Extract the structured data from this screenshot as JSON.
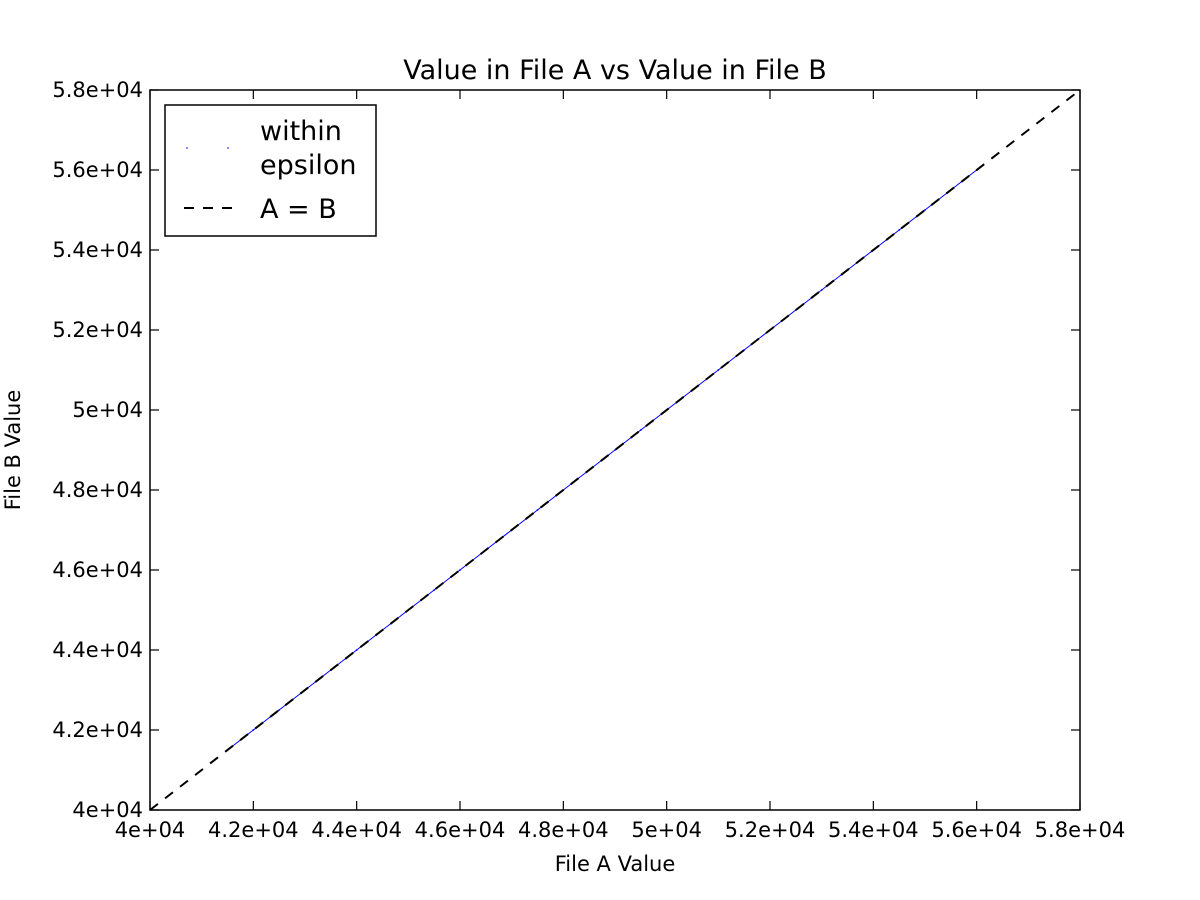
{
  "chart_data": {
    "type": "scatter",
    "title": "Value in File A vs Value in File B",
    "xlabel": "File A Value",
    "ylabel": "File B Value",
    "xlim": [
      40000,
      58000
    ],
    "ylim": [
      40000,
      58000
    ],
    "x_ticks": [
      40000,
      42000,
      44000,
      46000,
      48000,
      50000,
      52000,
      54000,
      56000,
      58000
    ],
    "x_tick_labels": [
      "4e+04",
      "4.2e+04",
      "4.4e+04",
      "4.6e+04",
      "4.8e+04",
      "5e+04",
      "5.2e+04",
      "5.4e+04",
      "5.6e+04",
      "5.8e+04"
    ],
    "y_ticks": [
      40000,
      42000,
      44000,
      46000,
      48000,
      50000,
      52000,
      54000,
      56000,
      58000
    ],
    "y_tick_labels": [
      "4e+04",
      "4.2e+04",
      "4.4e+04",
      "4.6e+04",
      "4.8e+04",
      "5e+04",
      "5.2e+04",
      "5.4e+04",
      "5.6e+04",
      "5.8e+04"
    ],
    "grid": false,
    "legend": {
      "placement": "top-left",
      "entries": [
        {
          "label_line1": "within",
          "label_line2": "epsilon",
          "style": "points"
        },
        {
          "label": "A = B",
          "style": "dashed-line"
        }
      ]
    },
    "series": [
      {
        "name": "within epsilon",
        "kind": "points",
        "color": "#0000ff",
        "x": [
          41500,
          42000,
          42500,
          43000,
          43500,
          44000,
          44500,
          45000,
          45500,
          46000,
          46500,
          47000,
          47500,
          48000,
          48500,
          49000,
          49500,
          50000,
          50500,
          51000,
          51500,
          52000,
          52500,
          53000,
          53500,
          54000,
          54500,
          55000,
          55500,
          56000
        ],
        "y": [
          41500,
          42000,
          42500,
          43000,
          43500,
          44000,
          44500,
          45000,
          45500,
          46000,
          46500,
          47000,
          47500,
          48000,
          48500,
          49000,
          49500,
          50000,
          50500,
          51000,
          51500,
          52000,
          52500,
          53000,
          53500,
          54000,
          54500,
          55000,
          55500,
          56000
        ]
      },
      {
        "name": "A = B",
        "kind": "dashed-line",
        "color": "#000000",
        "x": [
          40000,
          58000
        ],
        "y": [
          40000,
          58000
        ]
      }
    ]
  }
}
